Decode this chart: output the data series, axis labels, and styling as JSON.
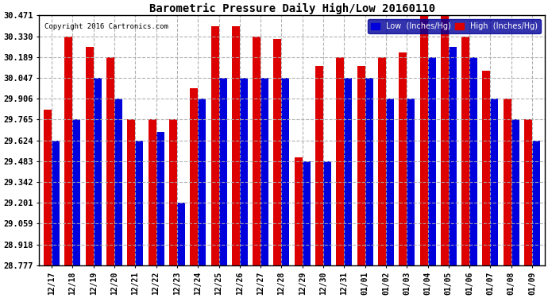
{
  "title": "Barometric Pressure Daily High/Low 20160110",
  "copyright": "Copyright 2016 Cartronics.com",
  "ylabel_low": "Low  (Inches/Hg)",
  "ylabel_high": "High  (Inches/Hg)",
  "dates": [
    "12/17",
    "12/18",
    "12/19",
    "12/20",
    "12/21",
    "12/22",
    "12/23",
    "12/24",
    "12/25",
    "12/26",
    "12/27",
    "12/28",
    "12/29",
    "12/30",
    "12/31",
    "01/01",
    "01/02",
    "01/03",
    "01/04",
    "01/05",
    "01/06",
    "01/07",
    "01/08",
    "01/09"
  ],
  "low_values": [
    29.624,
    29.765,
    30.047,
    29.906,
    29.62,
    29.68,
    29.201,
    29.906,
    30.047,
    30.047,
    30.047,
    30.047,
    29.483,
    29.483,
    30.047,
    30.047,
    29.906,
    29.906,
    30.189,
    30.26,
    30.189,
    29.906,
    29.765,
    29.624
  ],
  "high_values": [
    29.835,
    30.33,
    30.26,
    30.189,
    29.765,
    29.765,
    29.765,
    29.98,
    30.4,
    30.4,
    30.33,
    30.31,
    29.51,
    30.13,
    30.189,
    30.13,
    30.189,
    30.22,
    30.471,
    30.471,
    30.33,
    30.095,
    29.906,
    29.765
  ],
  "ylim": [
    28.777,
    30.471
  ],
  "yticks": [
    28.777,
    28.918,
    29.059,
    29.201,
    29.342,
    29.483,
    29.624,
    29.765,
    29.906,
    30.047,
    30.189,
    30.33,
    30.471
  ],
  "bg_color": "#ffffff",
  "plot_bg_color": "#ffffff",
  "low_color": "#0000dd",
  "high_color": "#dd0000",
  "grid_color": "#aaaaaa",
  "title_color": "#000000",
  "copyright_color": "#000000",
  "bar_width": 0.38
}
